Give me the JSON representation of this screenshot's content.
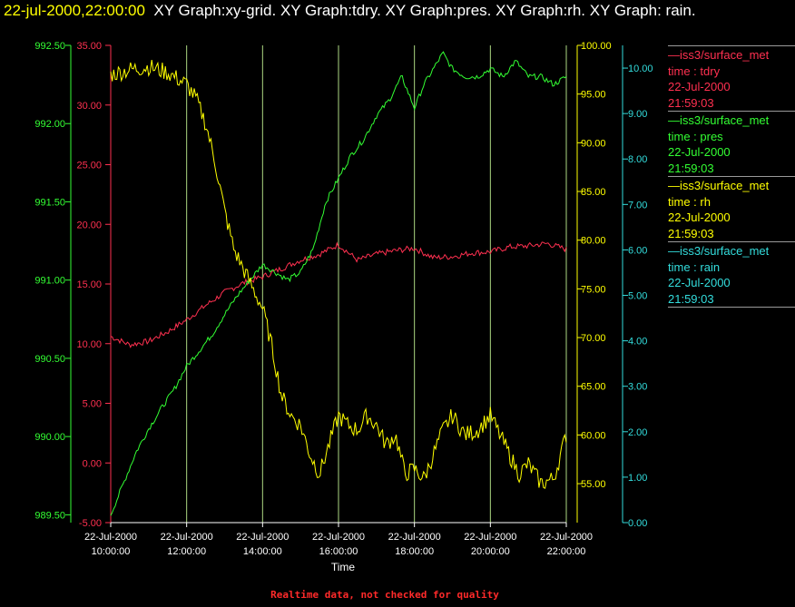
{
  "header": {
    "timestamp": "22-jul-2000,22:00:00",
    "graphs": "XY Graph:xy-grid.  XY Graph:tdry.  XY Graph:pres.  XY Graph:rh.  XY Graph: rain."
  },
  "footer": {
    "quality_note": "Realtime data, not checked for quality"
  },
  "colors": {
    "tdry": "#ff3050",
    "pres": "#33ff33",
    "rh": "#ffff00",
    "rain": "#33dddd",
    "grid": "#ccff99"
  },
  "legend": [
    {
      "series": "tdry",
      "source": "—iss3/surface_met",
      "var": "time : tdry",
      "date": "22-Jul-2000",
      "time": "21:59:03"
    },
    {
      "series": "pres",
      "source": "—iss3/surface_met",
      "var": "time : pres",
      "date": "22-Jul-2000",
      "time": "21:59:03"
    },
    {
      "series": "rh",
      "source": "—iss3/surface_met",
      "var": "time : rh",
      "date": "22-Jul-2000",
      "time": "21:59:03"
    },
    {
      "series": "rain",
      "source": "—iss3/surface_met",
      "var": "time : rain",
      "date": "22-Jul-2000",
      "time": "21:59:03"
    }
  ],
  "chart_data": {
    "type": "line",
    "title": "",
    "xlabel": "Time",
    "xlim": [
      "22-Jul-2000 10:00:00",
      "22-Jul-2000 22:00:00"
    ],
    "x_ticks": [
      {
        "date": "22-Jul-2000",
        "time": "10:00:00",
        "hour": 10
      },
      {
        "date": "22-Jul-2000",
        "time": "12:00:00",
        "hour": 12
      },
      {
        "date": "22-Jul-2000",
        "time": "14:00:00",
        "hour": 14
      },
      {
        "date": "22-Jul-2000",
        "time": "16:00:00",
        "hour": 16
      },
      {
        "date": "22-Jul-2000",
        "time": "18:00:00",
        "hour": 18
      },
      {
        "date": "22-Jul-2000",
        "time": "20:00:00",
        "hour": 20
      },
      {
        "date": "22-Jul-2000",
        "time": "22:00:00",
        "hour": 22
      }
    ],
    "grid": "vertical",
    "axes": {
      "tdry": {
        "side": "left-inner",
        "ylim": [
          -5,
          35
        ],
        "ticks": [
          "-5.00",
          "0.00",
          "5.00",
          "10.00",
          "15.00",
          "20.00",
          "25.00",
          "30.00",
          "35.00"
        ]
      },
      "pres": {
        "side": "left-outer",
        "ylim": [
          989.45,
          992.5
        ],
        "ticks": [
          "989.50",
          "990.00",
          "990.50",
          "991.00",
          "991.50",
          "992.00",
          "992.50"
        ]
      },
      "rh": {
        "side": "right-inner",
        "ylim": [
          51,
          100
        ],
        "ticks": [
          "55.00",
          "60.00",
          "65.00",
          "70.00",
          "75.00",
          "80.00",
          "85.00",
          "90.00",
          "95.00",
          "100.00"
        ]
      },
      "rain": {
        "side": "right-outer",
        "ylim": [
          0,
          10.5
        ],
        "ticks": [
          "0.00",
          "1.00",
          "2.00",
          "3.00",
          "4.00",
          "5.00",
          "6.00",
          "7.00",
          "8.00",
          "9.00",
          "10.00"
        ]
      }
    },
    "series": [
      {
        "name": "tdry",
        "axis": "tdry",
        "x": [
          "10:00",
          "10:30",
          "11:00",
          "11:30",
          "12:00",
          "12:30",
          "13:00",
          "13:30",
          "14:00",
          "14:30",
          "15:00",
          "15:30",
          "16:00",
          "16:30",
          "17:00",
          "17:30",
          "18:00",
          "18:30",
          "19:00",
          "19:30",
          "20:00",
          "20:30",
          "21:00",
          "21:30",
          "22:00"
        ],
        "values": [
          10.6,
          9.9,
          10.2,
          11.0,
          12.0,
          13.2,
          14.3,
          15.1,
          15.6,
          16.3,
          17.0,
          17.5,
          18.3,
          17.0,
          17.5,
          17.8,
          18.0,
          17.2,
          17.3,
          17.6,
          17.7,
          18.1,
          18.2,
          18.4,
          17.9
        ]
      },
      {
        "name": "pres",
        "axis": "pres",
        "x": [
          "10:00",
          "10:20",
          "10:40",
          "11:00",
          "11:20",
          "11:40",
          "12:00",
          "12:20",
          "12:40",
          "13:00",
          "13:20",
          "13:40",
          "14:00",
          "14:20",
          "14:40",
          "15:00",
          "15:20",
          "15:40",
          "16:00",
          "16:20",
          "16:40",
          "17:00",
          "17:20",
          "17:40",
          "18:00",
          "18:15",
          "18:30",
          "18:45",
          "19:00",
          "19:20",
          "19:40",
          "20:00",
          "20:20",
          "20:40",
          "21:00",
          "21:20",
          "21:40",
          "22:00"
        ],
        "values": [
          989.5,
          989.7,
          989.9,
          990.05,
          990.18,
          990.3,
          990.45,
          990.55,
          990.65,
          990.78,
          990.9,
          991.0,
          991.1,
          991.05,
          991.0,
          991.05,
          991.2,
          991.5,
          991.65,
          991.8,
          991.9,
          992.05,
          992.15,
          992.3,
          992.1,
          992.25,
          992.35,
          992.45,
          992.35,
          992.3,
          992.3,
          992.35,
          992.3,
          992.4,
          992.3,
          992.3,
          992.25,
          992.3
        ]
      },
      {
        "name": "rh",
        "axis": "rh",
        "x": [
          "10:00",
          "10:30",
          "11:00",
          "11:30",
          "12:00",
          "12:15",
          "12:30",
          "12:45",
          "13:00",
          "13:15",
          "13:30",
          "13:45",
          "14:00",
          "14:15",
          "14:30",
          "14:45",
          "15:00",
          "15:15",
          "15:30",
          "15:45",
          "16:00",
          "16:15",
          "16:30",
          "16:45",
          "17:00",
          "17:15",
          "17:30",
          "17:45",
          "18:00",
          "18:15",
          "18:30",
          "18:45",
          "19:00",
          "19:20",
          "19:40",
          "20:00",
          "20:15",
          "20:30",
          "20:45",
          "21:00",
          "21:20",
          "21:40",
          "22:00"
        ],
        "values": [
          97.0,
          97.5,
          97.8,
          97.2,
          96.0,
          94.5,
          92.0,
          88.0,
          83.0,
          79.0,
          77.0,
          75.0,
          73.0,
          69.0,
          64.0,
          62.0,
          61.0,
          58.0,
          56.0,
          59.0,
          62.0,
          61.0,
          60.5,
          62.0,
          61.0,
          59.0,
          60.0,
          56.0,
          56.5,
          55.5,
          58.0,
          60.5,
          62.0,
          60.0,
          60.5,
          62.0,
          60.0,
          58.0,
          56.0,
          57.0,
          55.0,
          55.5,
          60.0
        ]
      },
      {
        "name": "rain",
        "axis": "rain",
        "x": [
          "10:00",
          "22:00"
        ],
        "values": [
          0.0,
          0.0
        ]
      }
    ]
  }
}
